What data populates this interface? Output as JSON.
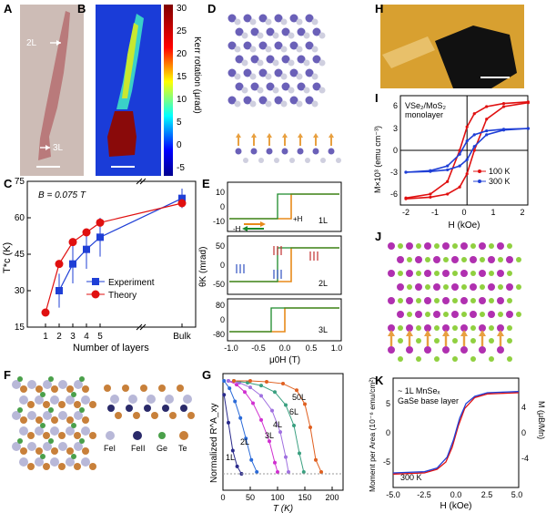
{
  "panels": {
    "A": {
      "letter": "A",
      "labels": [
        "2L",
        "3L"
      ]
    },
    "B": {
      "letter": "B",
      "colorbar_ticks": [
        "30",
        "25",
        "20",
        "15",
        "10",
        "5",
        "0",
        "-5"
      ],
      "colorbar_label": "Kerr rotation (μrad)"
    },
    "D": {
      "letter": "D"
    },
    "H": {
      "letter": "H"
    },
    "I": {
      "letter": "I",
      "annotation": [
        "VSe₂/MoS₂",
        "monolayer"
      ],
      "ylabel": "M×10³ (emu cm⁻³)",
      "xlabel": "H (kOe)",
      "xticks": [
        "-2",
        "-1",
        "0",
        "1",
        "2"
      ],
      "yticks": [
        "6",
        "3",
        "0",
        "-3",
        "-6"
      ],
      "legend": [
        "100 K",
        "300 K"
      ]
    },
    "C": {
      "letter": "C",
      "annotation": "B = 0.075 T",
      "ylabel": "T*c (K)",
      "xlabel": "Number of layers",
      "xticks": [
        "1",
        "2",
        "3",
        "4",
        "5",
        "Bulk"
      ],
      "yticks": [
        "75",
        "60",
        "45",
        "30",
        "15"
      ],
      "legend": [
        "Experiment",
        "Theory"
      ]
    },
    "E": {
      "letter": "E",
      "ylabel": "θK (mrad)",
      "xlabel": "μ0H (T)",
      "xticks": [
        "-1.0",
        "-0.5",
        "0.0",
        "0.5",
        "1.0"
      ],
      "sub": [
        {
          "label": "1L",
          "yticks": [
            "10",
            "0",
            "-10"
          ]
        },
        {
          "label": "2L",
          "yticks": [
            "50",
            "0",
            "-50"
          ]
        },
        {
          "label": "3L",
          "yticks": [
            "80",
            "0",
            "-80"
          ]
        }
      ],
      "sweep_labels": [
        "-H",
        "+H"
      ]
    },
    "J": {
      "letter": "J"
    },
    "F": {
      "letter": "F",
      "legend": [
        "FeI",
        "FeII",
        "Ge",
        "Te"
      ]
    },
    "G": {
      "letter": "G",
      "ylabel": "Normalized R^A_xy",
      "xlabel": "T (K)",
      "xticks": [
        "0",
        "50",
        "100",
        "150",
        "200"
      ],
      "curve_labels": [
        "1L",
        "2L",
        "3L",
        "4L",
        "6L",
        "50L"
      ]
    },
    "K": {
      "letter": "K",
      "annotation": [
        "~ 1L MnSeₓ",
        "GaSe base layer"
      ],
      "temp": "300 K",
      "ylabel_left": "Moment per Area (10⁻⁶ emu/cm²)",
      "ylabel_right": "M (μB/Mn)",
      "xlabel": "H (kOe)",
      "xticks": [
        "-5.0",
        "-2.5",
        "0.0",
        "2.5",
        "5.0"
      ],
      "yticks_left": [
        "5",
        "0",
        "-5"
      ],
      "yticks_right": [
        "4",
        "0",
        "-4"
      ]
    }
  },
  "colors": {
    "experiment": "#1f3fd6",
    "theory": "#e01010",
    "orange": "#e88a1a",
    "green": "#1c8a2a",
    "purple": "#8a3aa8"
  },
  "chart_data": [
    {
      "type": "line",
      "panel": "C",
      "categories": [
        "1",
        "2",
        "3",
        "4",
        "5",
        "Bulk"
      ],
      "series": [
        {
          "name": "Experiment",
          "values": [
            null,
            30,
            41,
            47,
            52,
            68
          ],
          "errors": [
            null,
            7,
            8,
            8,
            8,
            4
          ]
        },
        {
          "name": "Theory",
          "values": [
            21,
            41,
            50,
            54,
            58,
            66
          ]
        }
      ],
      "xlabel": "Number of layers",
      "ylabel": "T*c (K)",
      "ylim": [
        15,
        75
      ]
    },
    {
      "type": "line",
      "panel": "G",
      "series": [
        {
          "name": "1L",
          "x": [
            2,
            10,
            18,
            26,
            34
          ],
          "y": [
            0.85,
            0.55,
            0.25,
            0.08,
            0.0
          ]
        },
        {
          "name": "2L",
          "x": [
            2,
            12,
            22,
            32,
            42,
            52,
            62
          ],
          "y": [
            1.0,
            0.92,
            0.78,
            0.6,
            0.38,
            0.15,
            0.02
          ]
        },
        {
          "name": "3L",
          "x": [
            10,
            25,
            40,
            55,
            70,
            85,
            95,
            100
          ],
          "y": [
            1.0,
            0.96,
            0.88,
            0.76,
            0.58,
            0.35,
            0.12,
            0.02
          ]
        },
        {
          "name": "4L",
          "x": [
            10,
            30,
            50,
            70,
            90,
            105,
            115,
            120
          ],
          "y": [
            1.0,
            0.98,
            0.93,
            0.84,
            0.68,
            0.45,
            0.18,
            0.02
          ]
        },
        {
          "name": "6L",
          "x": [
            20,
            45,
            70,
            95,
            115,
            130,
            140,
            148
          ],
          "y": [
            1.0,
            0.98,
            0.95,
            0.88,
            0.74,
            0.52,
            0.22,
            0.02
          ]
        },
        {
          "name": "50L",
          "x": [
            20,
            50,
            80,
            110,
            135,
            150,
            160,
            170,
            180
          ],
          "y": [
            1.0,
            1.0,
            0.99,
            0.97,
            0.9,
            0.75,
            0.5,
            0.15,
            0.02
          ]
        }
      ],
      "xlabel": "T (K)",
      "xlim": [
        0,
        220
      ]
    },
    {
      "type": "line",
      "panel": "I",
      "series": [
        {
          "name": "100 K",
          "x": [
            -2.5,
            -1.5,
            -0.8,
            -0.3,
            0.0,
            0.3,
            0.8,
            1.5,
            2.5
          ],
          "up": [
            -6.2,
            -6.0,
            -5.6,
            -4.7,
            -3.0,
            0.0,
            4.0,
            5.6,
            6.1
          ],
          "down": [
            -6.1,
            -5.6,
            -4.0,
            0.0,
            3.0,
            4.7,
            5.6,
            6.0,
            6.2
          ]
        },
        {
          "name": "300 K",
          "x": [
            -2.5,
            -1.5,
            -0.8,
            -0.3,
            0.0,
            0.3,
            0.8,
            1.5,
            2.5
          ],
          "up": [
            -2.8,
            -2.7,
            -2.5,
            -2.0,
            -1.2,
            0.5,
            2.0,
            2.6,
            2.8
          ],
          "down": [
            -2.8,
            -2.6,
            -2.0,
            -0.5,
            1.2,
            2.0,
            2.5,
            2.7,
            2.8
          ]
        }
      ],
      "xlabel": "H (kOe)",
      "xlim": [
        -2.5,
        2.5
      ],
      "ylim": [
        -7,
        7
      ]
    },
    {
      "type": "line",
      "panel": "K",
      "series": [
        {
          "name": "sweep-up",
          "x": [
            -5,
            -2.5,
            -1.5,
            -0.8,
            -0.3,
            0.2,
            0.7,
            1.5,
            2.5,
            5
          ],
          "y": [
            -34,
            -33,
            -30,
            -24,
            -12,
            6,
            20,
            29,
            32,
            33
          ]
        },
        {
          "name": "sweep-down",
          "x": [
            -5,
            -2.5,
            -1.5,
            -0.7,
            -0.2,
            0.3,
            0.8,
            1.5,
            2.5,
            5
          ],
          "y": [
            -33,
            -32,
            -29,
            -20,
            -6,
            12,
            24,
            30,
            33,
            34
          ]
        }
      ],
      "xlabel": "H (kOe)",
      "xlim": [
        -5,
        5
      ],
      "ylim": [
        -45,
        45
      ]
    }
  ]
}
